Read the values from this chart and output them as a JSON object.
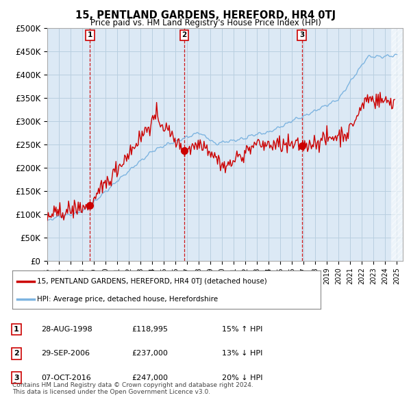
{
  "title": "15, PENTLAND GARDENS, HEREFORD, HR4 0TJ",
  "subtitle": "Price paid vs. HM Land Registry's House Price Index (HPI)",
  "ylim": [
    0,
    500000
  ],
  "yticks": [
    0,
    50000,
    100000,
    150000,
    200000,
    250000,
    300000,
    350000,
    400000,
    450000,
    500000
  ],
  "ytick_labels": [
    "£0",
    "£50K",
    "£100K",
    "£150K",
    "£200K",
    "£250K",
    "£300K",
    "£350K",
    "£400K",
    "£450K",
    "£500K"
  ],
  "hpi_color": "#7db4e0",
  "price_color": "#cc0000",
  "vline_color": "#cc0000",
  "chart_bg_color": "#dce9f5",
  "sale_prices": [
    118995,
    237000,
    247000
  ],
  "sale_labels": [
    "1",
    "2",
    "3"
  ],
  "sale_year_floats": [
    1998.667,
    2006.75,
    2016.833
  ],
  "sale_info": [
    {
      "label": "1",
      "date": "28-AUG-1998",
      "price": "£118,995",
      "hpi_rel": "15% ↑ HPI"
    },
    {
      "label": "2",
      "date": "29-SEP-2006",
      "price": "£237,000",
      "hpi_rel": "13% ↓ HPI"
    },
    {
      "label": "3",
      "date": "07-OCT-2016",
      "price": "£247,000",
      "hpi_rel": "20% ↓ HPI"
    }
  ],
  "legend_entries": [
    {
      "label": "15, PENTLAND GARDENS, HEREFORD, HR4 0TJ (detached house)",
      "color": "#cc0000"
    },
    {
      "label": "HPI: Average price, detached house, Herefordshire",
      "color": "#7db4e0"
    }
  ],
  "footnote": "Contains HM Land Registry data © Crown copyright and database right 2024.\nThis data is licensed under the Open Government Licence v3.0.",
  "background_color": "#ffffff",
  "grid_color": "#b8cfe0"
}
